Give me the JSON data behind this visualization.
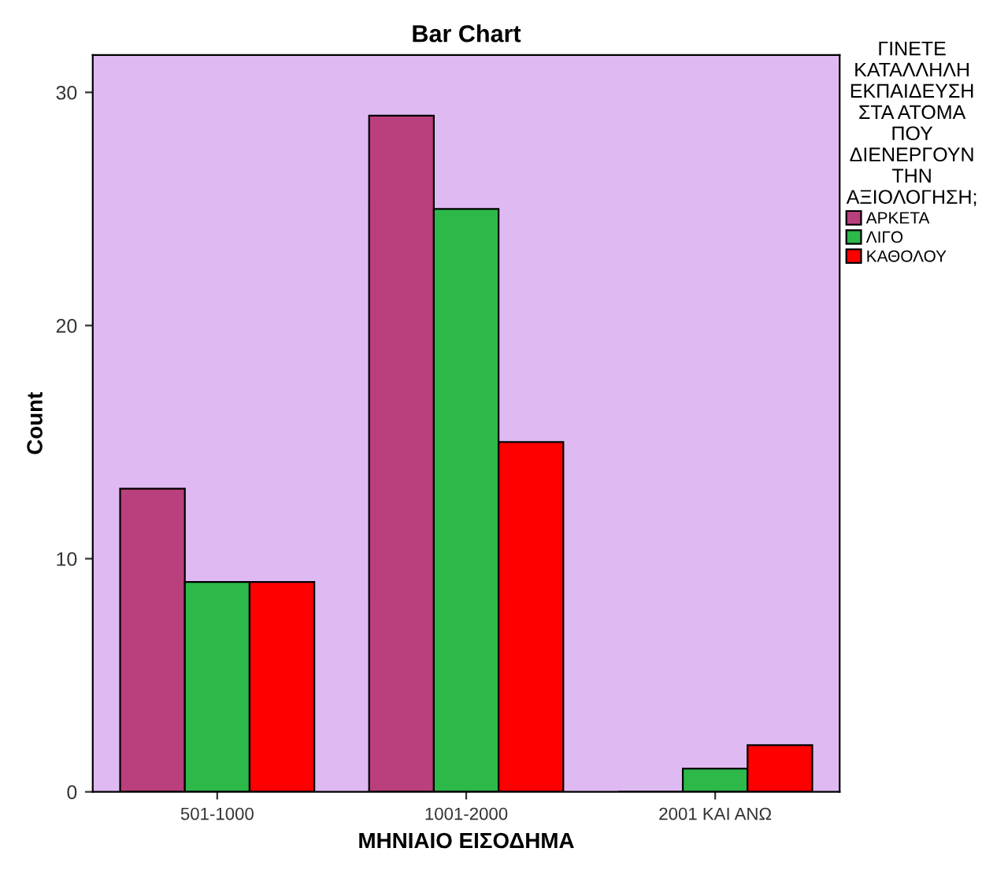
{
  "chart_data": {
    "type": "bar",
    "title": "Bar Chart",
    "xlabel": "ΜΗΝΙΑΙΟ ΕΙΣΟΔΗΜΑ",
    "ylabel": "Count",
    "legend_title": "ΓΙΝΕΤΕ\nΚΑΤΑΛΛΗΛΗ\nΕΚΠΑΙΔΕΥΣΗ\nΣΤΑ ΑΤΟΜΑ\nΠΟΥ\nΔΙΕΝΕΡΓΟΥΝ\nΤΗΝ\nΑΞΙΟΛΟΓΗΣΗ;",
    "categories": [
      "501-1000",
      "1001-2000",
      "2001 ΚΑΙ ΑΝΩ"
    ],
    "series": [
      {
        "name": "ΑΡΚΕΤΑ",
        "color": "#b93f7d",
        "values": [
          13,
          29,
          0
        ]
      },
      {
        "name": "ΛΙΓΟ",
        "color": "#2db84a",
        "values": [
          9,
          25,
          1
        ]
      },
      {
        "name": "ΚΑΘΟΛΟΥ",
        "color": "#ff0000",
        "values": [
          9,
          15,
          2
        ]
      }
    ],
    "ylim": [
      0,
      31.6
    ],
    "yticks": [
      0,
      10,
      20,
      30
    ],
    "grid": false,
    "legend": "right"
  }
}
